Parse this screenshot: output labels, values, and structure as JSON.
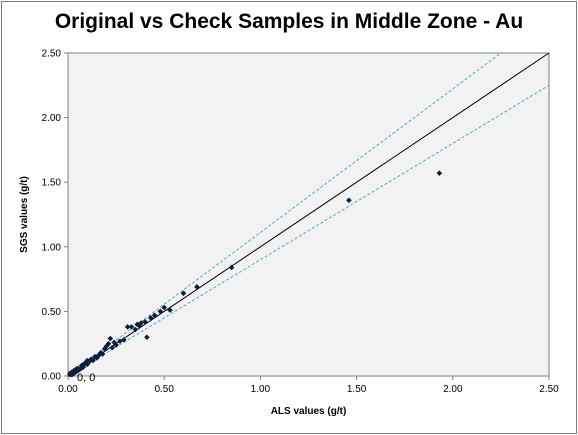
{
  "chart_data": {
    "type": "scatter",
    "title": "Original vs Check Samples in Middle Zone - Au",
    "xlabel": "ALS values (g/t)",
    "ylabel": "SGS values (g/t)",
    "xlim": [
      0,
      2.5
    ],
    "ylim": [
      0,
      2.5
    ],
    "x_ticks": [
      "0.00",
      "0.50",
      "1.00",
      "1.50",
      "2.00",
      "2.50"
    ],
    "y_ticks": [
      "0.00",
      "0.50",
      "1.00",
      "1.50",
      "2.00",
      "2.50"
    ],
    "grid": false,
    "legend": "none",
    "annotation": "0, 0",
    "colors": {
      "points": "#0d1f3c",
      "plot_background": "#f2f2f2",
      "reference_line": "#000000",
      "tolerance_lines": "#4bacc6"
    },
    "reference_line": {
      "x": [
        0,
        2.5
      ],
      "y": [
        0,
        2.5
      ]
    },
    "tolerance_lines": [
      {
        "x": [
          0,
          2.25
        ],
        "y": [
          0,
          2.5
        ]
      },
      {
        "x": [
          0,
          2.5
        ],
        "y": [
          0,
          2.25
        ]
      }
    ],
    "points": [
      {
        "x": 0.01,
        "y": 0.01
      },
      {
        "x": 0.01,
        "y": 0.02
      },
      {
        "x": 0.02,
        "y": 0.01
      },
      {
        "x": 0.02,
        "y": 0.03
      },
      {
        "x": 0.03,
        "y": 0.02
      },
      {
        "x": 0.03,
        "y": 0.04
      },
      {
        "x": 0.04,
        "y": 0.03
      },
      {
        "x": 0.04,
        "y": 0.05
      },
      {
        "x": 0.05,
        "y": 0.04
      },
      {
        "x": 0.05,
        "y": 0.06
      },
      {
        "x": 0.06,
        "y": 0.05
      },
      {
        "x": 0.07,
        "y": 0.06
      },
      {
        "x": 0.07,
        "y": 0.08
      },
      {
        "x": 0.08,
        "y": 0.07
      },
      {
        "x": 0.08,
        "y": 0.09
      },
      {
        "x": 0.09,
        "y": 0.1
      },
      {
        "x": 0.1,
        "y": 0.09
      },
      {
        "x": 0.1,
        "y": 0.12
      },
      {
        "x": 0.11,
        "y": 0.11
      },
      {
        "x": 0.12,
        "y": 0.13
      },
      {
        "x": 0.13,
        "y": 0.12
      },
      {
        "x": 0.14,
        "y": 0.15
      },
      {
        "x": 0.15,
        "y": 0.14
      },
      {
        "x": 0.16,
        "y": 0.16
      },
      {
        "x": 0.17,
        "y": 0.18
      },
      {
        "x": 0.18,
        "y": 0.17
      },
      {
        "x": 0.19,
        "y": 0.21
      },
      {
        "x": 0.2,
        "y": 0.23
      },
      {
        "x": 0.21,
        "y": 0.25
      },
      {
        "x": 0.22,
        "y": 0.29
      },
      {
        "x": 0.23,
        "y": 0.22
      },
      {
        "x": 0.24,
        "y": 0.26
      },
      {
        "x": 0.25,
        "y": 0.24
      },
      {
        "x": 0.27,
        "y": 0.27
      },
      {
        "x": 0.29,
        "y": 0.28
      },
      {
        "x": 0.31,
        "y": 0.38
      },
      {
        "x": 0.33,
        "y": 0.38
      },
      {
        "x": 0.35,
        "y": 0.36
      },
      {
        "x": 0.36,
        "y": 0.4
      },
      {
        "x": 0.37,
        "y": 0.39
      },
      {
        "x": 0.38,
        "y": 0.41
      },
      {
        "x": 0.4,
        "y": 0.42
      },
      {
        "x": 0.41,
        "y": 0.3
      },
      {
        "x": 0.43,
        "y": 0.45
      },
      {
        "x": 0.45,
        "y": 0.47
      },
      {
        "x": 0.48,
        "y": 0.5
      },
      {
        "x": 0.5,
        "y": 0.53
      },
      {
        "x": 0.53,
        "y": 0.51
      },
      {
        "x": 0.6,
        "y": 0.64
      },
      {
        "x": 0.67,
        "y": 0.69
      },
      {
        "x": 0.85,
        "y": 0.84
      },
      {
        "x": 1.46,
        "y": 1.36
      },
      {
        "x": 1.93,
        "y": 1.57
      }
    ]
  }
}
